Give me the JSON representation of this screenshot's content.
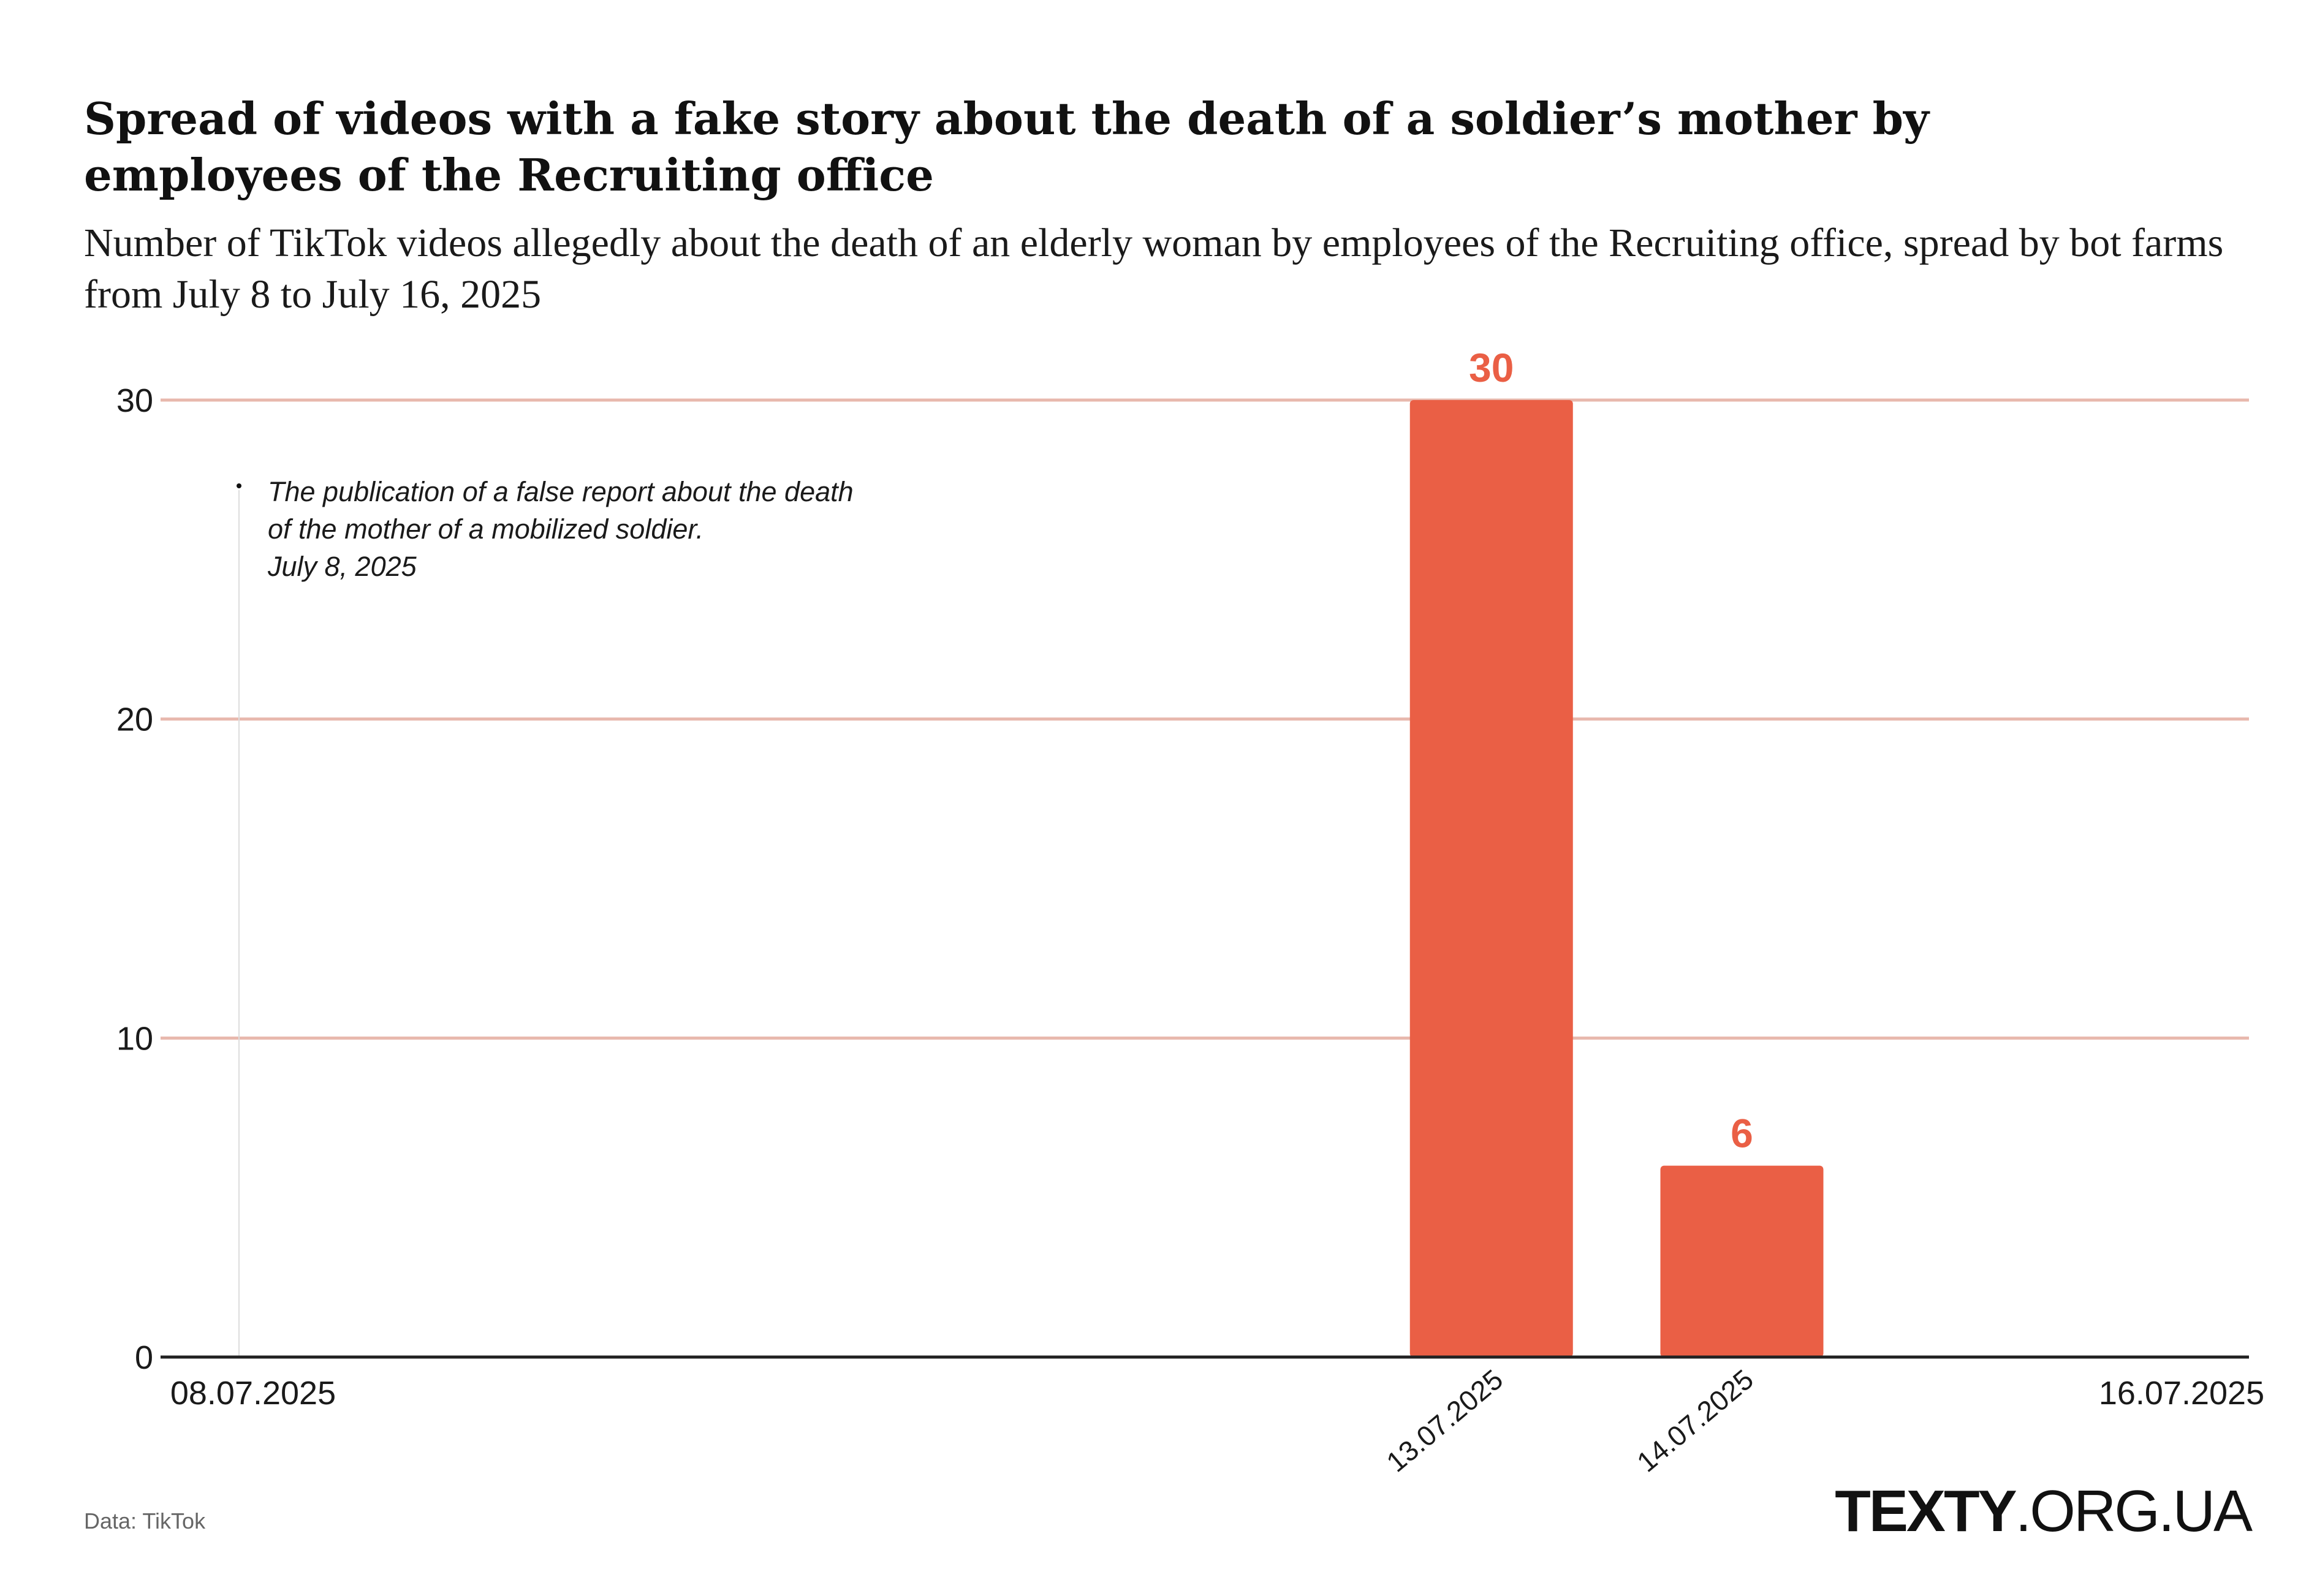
{
  "title": "Spread of videos with a fake story about the death of a soldier’s mother by employees of the Recruiting office",
  "subtitle": "Number of TikTok videos allegedly about the death of an elderly woman by employees of the Recruiting office, spread by bot farms from July 8 to July 16, 2025",
  "source": "Data: TikTok",
  "brand": {
    "bold": "TEXTY",
    "rest": ".ORG.UA"
  },
  "annotation": {
    "line1": "The publication of a false report about the death",
    "line2": "of the mother of a mobilized soldier.",
    "line3": "July 8, 2025"
  },
  "colors": {
    "bar": "#ea5f45",
    "grid": "#e8b8ad",
    "axis": "#222222",
    "marker": "#dddddd"
  },
  "chart_data": {
    "type": "bar",
    "title": "Spread of videos with a fake story about the death of a soldier’s mother by employees of the Recruiting office",
    "xlabel": "",
    "ylabel": "",
    "x_start": "08.07.2025",
    "x_end": "16.07.2025",
    "categories": [
      "13.07.2025",
      "14.07.2025"
    ],
    "values": [
      30,
      6
    ],
    "data_labels": [
      "30",
      "6"
    ],
    "category_day_index": [
      5,
      6
    ],
    "ylim": [
      0,
      30
    ],
    "yticks": [
      0,
      10,
      20,
      30
    ],
    "ytick_labels": [
      "0",
      "10",
      "20",
      "30"
    ],
    "grid": true,
    "annotation_day_index": 0
  }
}
